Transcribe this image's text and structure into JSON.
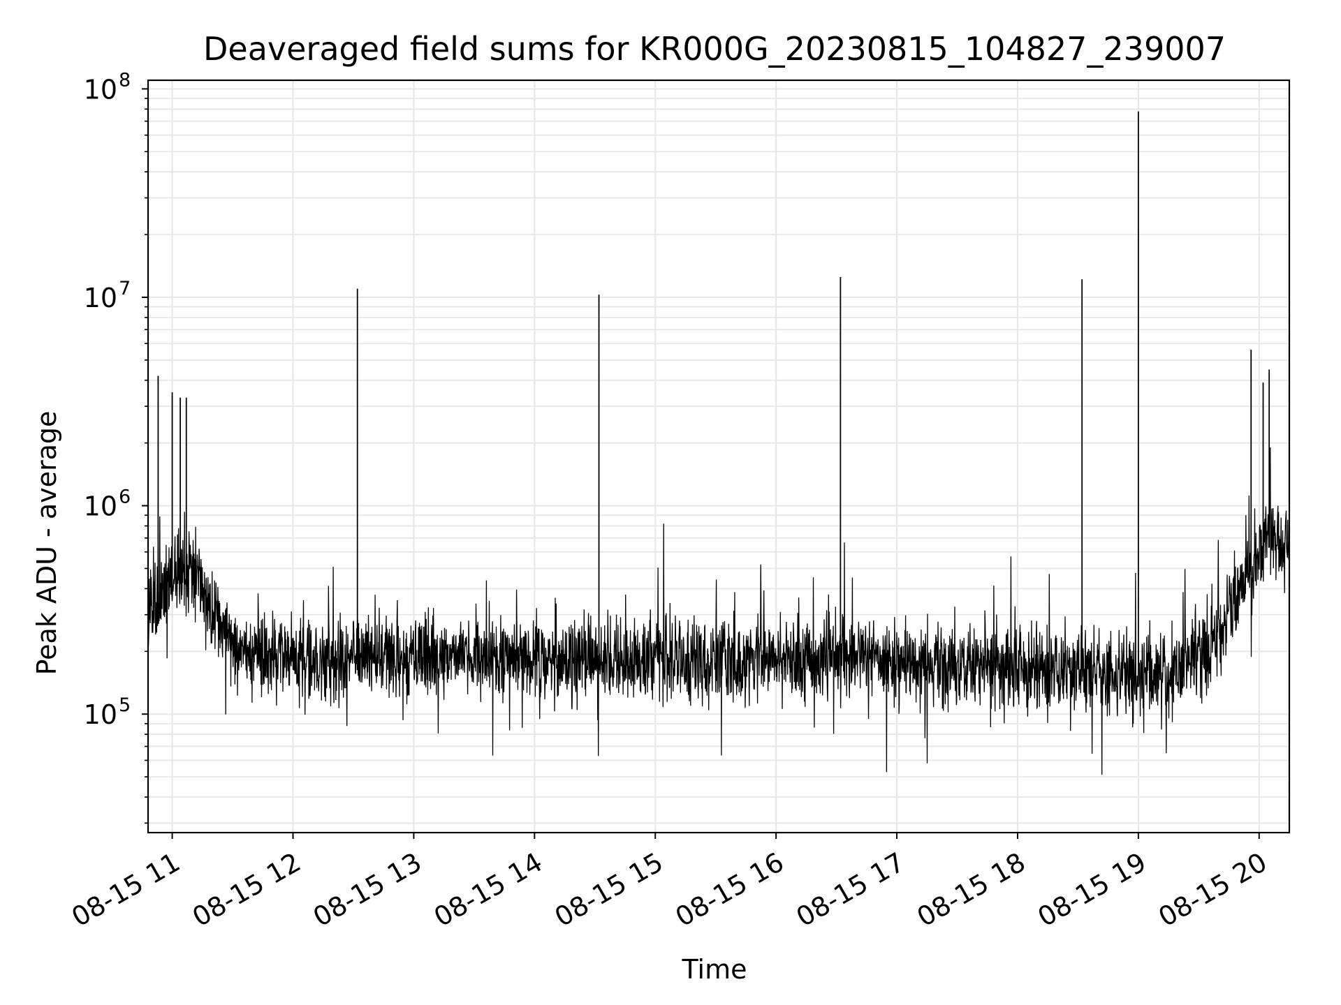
{
  "chart_data": {
    "type": "line",
    "title": "Deaveraged field sums for KR000G_20230815_104827_239007",
    "xlabel": "Time",
    "ylabel": "Peak ADU - average",
    "yscale": "log",
    "grid": true,
    "grid_minor": true,
    "line_color": "#000000",
    "grid_color": "#e6e6e6",
    "xlim": [
      "2023-08-15 10:48",
      "2023-08-15 20:15"
    ],
    "ylim": [
      27000,
      110000000
    ],
    "x_ticks": [
      "2023-08-15 11:00",
      "2023-08-15 12:00",
      "2023-08-15 13:00",
      "2023-08-15 14:00",
      "2023-08-15 15:00",
      "2023-08-15 16:00",
      "2023-08-15 17:00",
      "2023-08-15 18:00",
      "2023-08-15 19:00",
      "2023-08-15 20:00"
    ],
    "x_tick_labels": [
      "08-15 11",
      "08-15 12",
      "08-15 13",
      "08-15 14",
      "08-15 15",
      "08-15 16",
      "08-15 17",
      "08-15 18",
      "08-15 19",
      "08-15 20"
    ],
    "y_ticks": [
      100000,
      1000000,
      10000000,
      100000000
    ],
    "y_tick_labels": [
      {
        "base": "10",
        "exp": "5"
      },
      {
        "base": "10",
        "exp": "6"
      },
      {
        "base": "10",
        "exp": "7"
      },
      {
        "base": "10",
        "exp": "8"
      }
    ],
    "series": [
      {
        "x": [
          "2023-08-15 10:48",
          "2023-08-15 10:55",
          "2023-08-15 11:00",
          "2023-08-15 11:10",
          "2023-08-15 11:20",
          "2023-08-15 11:30",
          "2023-08-15 11:45",
          "2023-08-15 12:00",
          "2023-08-15 12:30",
          "2023-08-15 13:00",
          "2023-08-15 13:30",
          "2023-08-15 14:00",
          "2023-08-15 14:30",
          "2023-08-15 15:00",
          "2023-08-15 15:30",
          "2023-08-15 16:00",
          "2023-08-15 16:30",
          "2023-08-15 17:00",
          "2023-08-15 17:30",
          "2023-08-15 18:00",
          "2023-08-15 18:30",
          "2023-08-15 19:00",
          "2023-08-15 19:20",
          "2023-08-15 19:35",
          "2023-08-15 19:45",
          "2023-08-15 19:55",
          "2023-08-15 20:05",
          "2023-08-15 20:15"
        ],
        "y": [
          300000,
          400000,
          450000,
          500000,
          300000,
          200000,
          190000,
          185000,
          180000,
          190000,
          185000,
          180000,
          180000,
          185000,
          180000,
          180000,
          190000,
          180000,
          170000,
          165000,
          160000,
          150000,
          170000,
          200000,
          300000,
          500000,
          700000,
          650000
        ]
      },
      {
        "x": [
          "2023-08-15 10:53",
          "2023-08-15 11:00",
          "2023-08-15 11:04",
          "2023-08-15 11:07",
          "2023-08-15 12:32",
          "2023-08-15 14:32",
          "2023-08-15 16:32",
          "2023-08-15 18:32",
          "2023-08-15 19:00",
          "2023-08-15 19:56",
          "2023-08-15 20:02",
          "2023-08-15 20:05"
        ],
        "y": [
          4200000,
          3500000,
          3300000,
          3300000,
          11000000,
          10300000,
          12500000,
          12200000,
          78000000,
          5600000,
          3900000,
          4500000
        ]
      }
    ]
  }
}
